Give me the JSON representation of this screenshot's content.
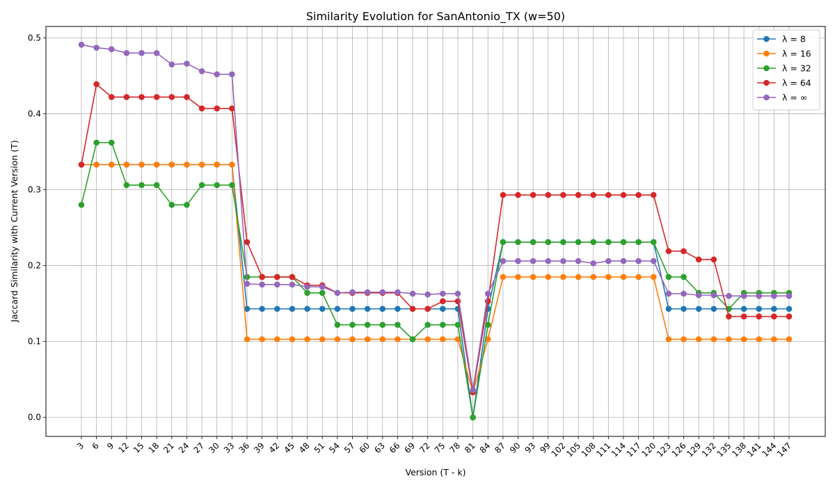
{
  "chart_data": {
    "type": "line",
    "title": "Similarity Evolution for SanAntonio_TX (w=50)",
    "xlabel": "Version (T - k)",
    "ylabel": "Jaccard Similarity with Current Version (T)",
    "ylim": [
      -0.025,
      0.515
    ],
    "yticks": [
      0.0,
      0.1,
      0.2,
      0.3,
      0.4,
      0.5
    ],
    "ytick_labels": [
      "0.0",
      "0.1",
      "0.2",
      "0.3",
      "0.4",
      "0.5"
    ],
    "grid": true,
    "legend_position": "top-right",
    "x": [
      3,
      6,
      9,
      12,
      15,
      18,
      21,
      24,
      27,
      30,
      33,
      36,
      39,
      42,
      45,
      48,
      51,
      54,
      57,
      60,
      63,
      66,
      69,
      72,
      75,
      78,
      81,
      84,
      87,
      90,
      93,
      99,
      102,
      105,
      108,
      111,
      114,
      117,
      120,
      123,
      126,
      129,
      132,
      135,
      138,
      141,
      144,
      147
    ],
    "series": [
      {
        "name": "λ = 8",
        "color": "#1f77b4",
        "values": [
          0.333,
          0.333,
          0.333,
          0.333,
          0.333,
          0.333,
          0.333,
          0.333,
          0.333,
          0.333,
          0.333,
          0.143,
          0.143,
          0.143,
          0.143,
          0.143,
          0.143,
          0.143,
          0.143,
          0.143,
          0.143,
          0.143,
          0.143,
          0.143,
          0.143,
          0.143,
          0.0,
          0.143,
          0.231,
          0.231,
          0.231,
          0.231,
          0.231,
          0.231,
          0.231,
          0.231,
          0.231,
          0.231,
          0.231,
          0.143,
          0.143,
          0.143,
          0.143,
          0.143,
          0.143,
          0.143,
          0.143,
          0.143
        ]
      },
      {
        "name": "λ = 16",
        "color": "#ff7f0e",
        "values": [
          0.333,
          0.333,
          0.333,
          0.333,
          0.333,
          0.333,
          0.333,
          0.333,
          0.333,
          0.333,
          0.333,
          0.103,
          0.103,
          0.103,
          0.103,
          0.103,
          0.103,
          0.103,
          0.103,
          0.103,
          0.103,
          0.103,
          0.103,
          0.103,
          0.103,
          0.103,
          0.033,
          0.103,
          0.185,
          0.185,
          0.185,
          0.185,
          0.185,
          0.185,
          0.185,
          0.185,
          0.185,
          0.185,
          0.185,
          0.103,
          0.103,
          0.103,
          0.103,
          0.103,
          0.103,
          0.103,
          0.103,
          0.103
        ]
      },
      {
        "name": "λ = 32",
        "color": "#2ca02c",
        "values": [
          0.28,
          0.362,
          0.362,
          0.306,
          0.306,
          0.306,
          0.28,
          0.28,
          0.306,
          0.306,
          0.306,
          0.185,
          0.185,
          0.185,
          0.185,
          0.164,
          0.164,
          0.122,
          0.122,
          0.122,
          0.122,
          0.122,
          0.103,
          0.122,
          0.122,
          0.122,
          0.0,
          0.122,
          0.231,
          0.231,
          0.231,
          0.231,
          0.231,
          0.231,
          0.231,
          0.231,
          0.231,
          0.231,
          0.231,
          0.185,
          0.185,
          0.164,
          0.164,
          0.143,
          0.164,
          0.164,
          0.164,
          0.164
        ]
      },
      {
        "name": "λ = 64",
        "color": "#d62728",
        "values": [
          0.333,
          0.439,
          0.422,
          0.422,
          0.422,
          0.422,
          0.422,
          0.422,
          0.407,
          0.407,
          0.407,
          0.231,
          0.185,
          0.185,
          0.185,
          0.174,
          0.174,
          0.164,
          0.164,
          0.164,
          0.164,
          0.164,
          0.143,
          0.143,
          0.153,
          0.153,
          0.033,
          0.153,
          0.293,
          0.293,
          0.293,
          0.293,
          0.293,
          0.293,
          0.293,
          0.293,
          0.293,
          0.293,
          0.293,
          0.219,
          0.219,
          0.208,
          0.208,
          0.133,
          0.133,
          0.133,
          0.133,
          0.133
        ]
      },
      {
        "name": "λ = ∞",
        "color": "#9467bd",
        "values": [
          0.491,
          0.487,
          0.485,
          0.48,
          0.48,
          0.48,
          0.465,
          0.466,
          0.456,
          0.452,
          0.452,
          0.176,
          0.175,
          0.175,
          0.175,
          0.172,
          0.172,
          0.164,
          0.165,
          0.165,
          0.165,
          0.165,
          0.163,
          0.162,
          0.163,
          0.163,
          0.036,
          0.163,
          0.206,
          0.206,
          0.206,
          0.206,
          0.206,
          0.206,
          0.203,
          0.206,
          0.206,
          0.206,
          0.206,
          0.163,
          0.163,
          0.161,
          0.161,
          0.16,
          0.16,
          0.16,
          0.16,
          0.16
        ]
      }
    ]
  }
}
